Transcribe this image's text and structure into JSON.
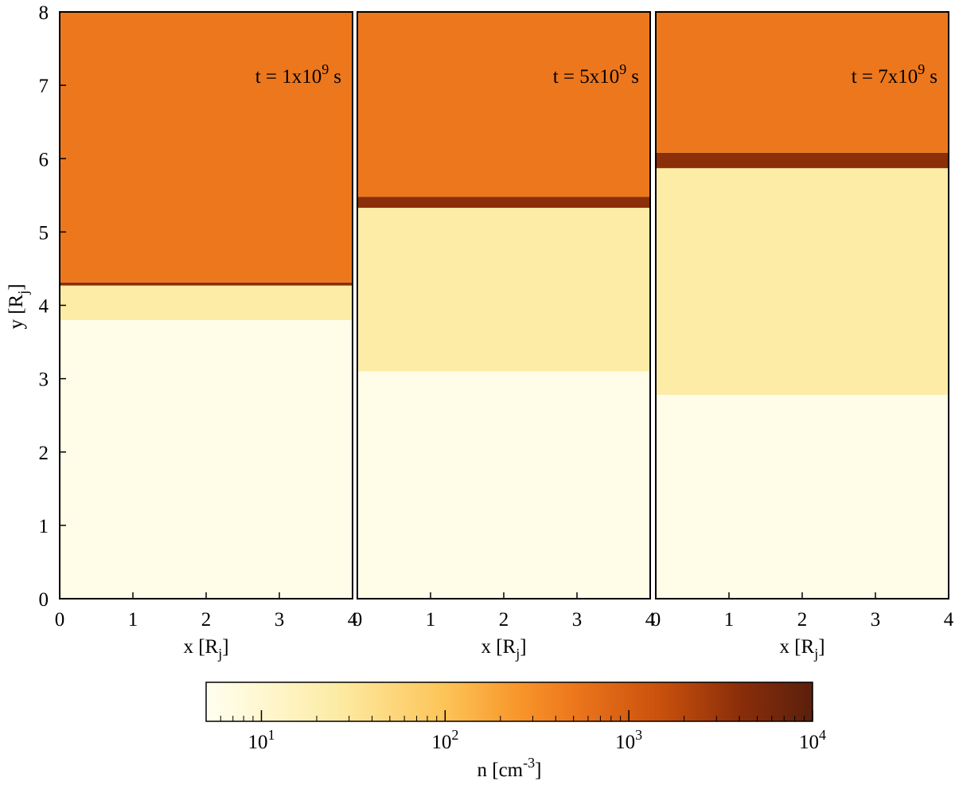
{
  "chart_data": [
    {
      "type": "heatmap",
      "annotation": {
        "text": "t = 1x10",
        "exponent": "9",
        "unit": "s"
      },
      "xlabel": {
        "text": "x [R",
        "sub": "j",
        "end": "]"
      },
      "ylabel": {
        "text": "y [R",
        "sub": "j",
        "end": "]"
      },
      "xlim": [
        0,
        4
      ],
      "xticks": [
        0,
        1,
        2,
        3,
        4
      ],
      "ylim": [
        0,
        8
      ],
      "yticks": [
        0,
        1,
        2,
        3,
        4,
        5,
        6,
        7,
        8
      ],
      "layers": [
        {
          "y0": 0,
          "y1": 3.8,
          "value": 6
        },
        {
          "y0": 3.8,
          "y1": 4.27,
          "value": 25
        },
        {
          "y0": 4.27,
          "y1": 4.31,
          "value": 4000
        },
        {
          "y0": 4.31,
          "y1": 8,
          "value": 500
        }
      ]
    },
    {
      "type": "heatmap",
      "annotation": {
        "text": "t = 5x10",
        "exponent": "9",
        "unit": "s"
      },
      "xlabel": {
        "text": "x [R",
        "sub": "j",
        "end": "]"
      },
      "xlim": [
        0,
        4
      ],
      "xticks": [
        0,
        1,
        2,
        3,
        4
      ],
      "ylim": [
        0,
        8
      ],
      "layers": [
        {
          "y0": 0,
          "y1": 3.1,
          "value": 6
        },
        {
          "y0": 3.1,
          "y1": 5.33,
          "value": 25
        },
        {
          "y0": 5.33,
          "y1": 5.48,
          "value": 4000
        },
        {
          "y0": 5.48,
          "y1": 8,
          "value": 500
        }
      ]
    },
    {
      "type": "heatmap",
      "annotation": {
        "text": "t = 7x10",
        "exponent": "9",
        "unit": "s"
      },
      "xlabel": {
        "text": "x [R",
        "sub": "j",
        "end": "]"
      },
      "xlim": [
        0,
        4
      ],
      "xticks": [
        0,
        1,
        2,
        3,
        4
      ],
      "ylim": [
        0,
        8
      ],
      "layers": [
        {
          "y0": 0,
          "y1": 2.78,
          "value": 6
        },
        {
          "y0": 2.78,
          "y1": 5.87,
          "value": 25
        },
        {
          "y0": 5.87,
          "y1": 6.08,
          "value": 4000
        },
        {
          "y0": 6.08,
          "y1": 8,
          "value": 500
        }
      ]
    },
    {
      "type": "colorbar",
      "log_scale": true,
      "label": {
        "text": "n [cm",
        "exponent": "-3",
        "end": "]"
      },
      "xlim": [
        5,
        10000
      ],
      "xticks": [
        {
          "value": 10,
          "label": [
            "10",
            "1"
          ]
        },
        {
          "value": 100,
          "label": [
            "10",
            "2"
          ]
        },
        {
          "value": 1000,
          "label": [
            "10",
            "3"
          ]
        },
        {
          "value": 10000,
          "label": [
            "10",
            "4"
          ]
        }
      ],
      "minor_ticks": [
        6,
        7,
        8,
        9,
        20,
        30,
        40,
        50,
        60,
        70,
        80,
        90,
        200,
        300,
        400,
        500,
        600,
        700,
        800,
        900,
        2000,
        3000,
        4000,
        5000,
        6000,
        7000,
        8000,
        9000
      ],
      "colormap": [
        {
          "value": 5,
          "color": "#fffff0"
        },
        {
          "value": 25,
          "color": "#fdeca6"
        },
        {
          "value": 100,
          "color": "#fdc457"
        },
        {
          "value": 250,
          "color": "#f8962a"
        },
        {
          "value": 500,
          "color": "#ed771d"
        },
        {
          "value": 1500,
          "color": "#c8500c"
        },
        {
          "value": 4000,
          "color": "#8b2e0a"
        },
        {
          "value": 10000,
          "color": "#5a1f0c"
        }
      ]
    }
  ]
}
